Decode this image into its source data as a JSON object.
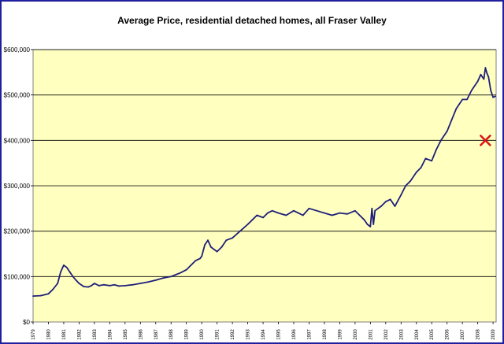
{
  "chart_data": {
    "type": "line",
    "title": "Average Price, residential detached homes, all Fraser Valley",
    "xlabel": "",
    "ylabel": "",
    "x_tick_labels": [
      "1979",
      "1980",
      "1981",
      "1982",
      "1983",
      "1984",
      "1985",
      "1986",
      "1987",
      "1988",
      "1989",
      "1990",
      "1991",
      "1992",
      "1993",
      "1994",
      "1995",
      "1996",
      "1997",
      "1998",
      "1999",
      "2000",
      "2001",
      "2002",
      "2003",
      "2004",
      "2005",
      "2006",
      "2007",
      "2008",
      "2009"
    ],
    "y_tick_labels": [
      "$0",
      "$100,000",
      "$200,000",
      "$300,000",
      "$400,000",
      "$500,000",
      "$600,000"
    ],
    "ylim": [
      0,
      600000
    ],
    "xlim": [
      1979,
      2009.2
    ],
    "grid": "horizontal",
    "legend": "none",
    "colors": {
      "plot_background": "#ffffc0",
      "line": "#1f1f7a",
      "marker": "#dd1111",
      "frame": "#1f1fa0",
      "gridline": "#000000"
    },
    "series": [
      {
        "x": [
          1979,
          1979.5,
          1980,
          1980.3,
          1980.6,
          1980.8,
          1981,
          1981.2,
          1981.4,
          1981.6,
          1981.8,
          1982,
          1982.3,
          1982.6,
          1982.8,
          1983,
          1983.3,
          1983.6,
          1984,
          1984.3,
          1984.6,
          1985,
          1985.5,
          1986,
          1986.5,
          1987,
          1987.5,
          1988,
          1988.3,
          1988.6,
          1989,
          1989.3,
          1989.6,
          1989.9,
          1990,
          1990.2,
          1990.4,
          1990.6,
          1991,
          1991.3,
          1991.6,
          1992,
          1992.5,
          1993,
          1993.3,
          1993.6,
          1994,
          1994.3,
          1994.6,
          1995,
          1995.5,
          1996,
          1996.3,
          1996.6,
          1997,
          1997.5,
          1998,
          1998.5,
          1999,
          1999.5,
          2000,
          2000.3,
          2000.6,
          2000.8,
          2001,
          2001.1,
          2001.2,
          2001.3,
          2001.5,
          2001.7,
          2002,
          2002.3,
          2002.6,
          2003,
          2003.3,
          2003.6,
          2004,
          2004.3,
          2004.6,
          2005,
          2005.3,
          2005.6,
          2006,
          2006.3,
          2006.6,
          2007,
          2007.3,
          2007.6,
          2008,
          2008.2,
          2008.4,
          2008.5,
          2008.6,
          2008.7,
          2008.85,
          2009,
          2009.15
        ],
        "y": [
          57000,
          58000,
          62000,
          72000,
          85000,
          110000,
          125000,
          120000,
          110000,
          100000,
          92000,
          85000,
          78000,
          77000,
          80000,
          85000,
          80000,
          82000,
          80000,
          82000,
          79000,
          80000,
          82000,
          85000,
          88000,
          92000,
          97000,
          100000,
          104000,
          108000,
          115000,
          125000,
          135000,
          140000,
          145000,
          170000,
          180000,
          165000,
          155000,
          165000,
          180000,
          185000,
          200000,
          215000,
          225000,
          235000,
          230000,
          240000,
          245000,
          240000,
          235000,
          245000,
          240000,
          235000,
          250000,
          245000,
          240000,
          235000,
          240000,
          238000,
          245000,
          235000,
          225000,
          215000,
          210000,
          250000,
          215000,
          245000,
          250000,
          255000,
          265000,
          270000,
          255000,
          280000,
          300000,
          310000,
          330000,
          340000,
          360000,
          355000,
          380000,
          400000,
          420000,
          445000,
          470000,
          490000,
          490000,
          510000,
          530000,
          545000,
          535000,
          560000,
          548000,
          540000,
          510000,
          495000,
          497000
        ]
      }
    ],
    "annotations": [
      {
        "type": "marker",
        "symbol": "x",
        "x": 2008.5,
        "y": 400000
      }
    ]
  }
}
